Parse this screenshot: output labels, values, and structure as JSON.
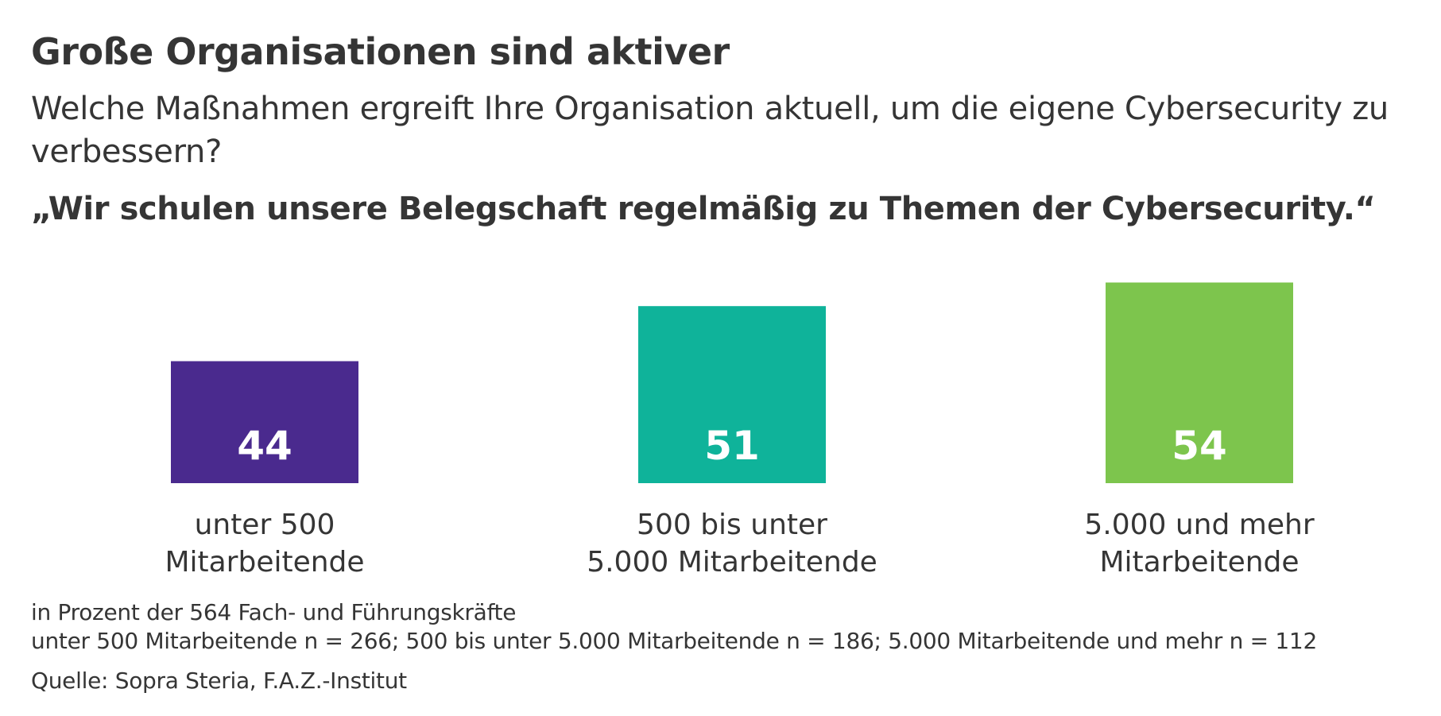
{
  "header": {
    "title": "Große Organisationen sind aktiver",
    "subtitle": "Welche Maßnahmen ergreift Ihre Organisation aktuell, um die eigene Cybersecurity zu verbessern?",
    "quote": "„Wir schulen unsere Belegschaft regelmäßig zu Themen der Cybersecurity.“"
  },
  "chart_data": {
    "type": "bar",
    "categories": [
      [
        "unter 500",
        "Mitarbeitende"
      ],
      [
        "500 bis unter",
        "5.000 Mitarbeitende"
      ],
      [
        "5.000 und mehr",
        "Mitarbeitende"
      ]
    ],
    "values": [
      44,
      51,
      54
    ],
    "colors": [
      "#4a2a8e",
      "#0fb39a",
      "#7dc54d"
    ],
    "data_labels": [
      "44",
      "51",
      "54"
    ],
    "grid": false,
    "legend": "none"
  },
  "footer": {
    "note_line1": "in Prozent der 564 Fach- und Führungskräfte",
    "note_line2": "unter 500 Mitarbeitende n = 266; 500 bis unter 5.000 Mitarbeitende n = 186; 5.000 Mitarbeitende und mehr n = 112",
    "source": "Quelle: Sopra Steria, F.A.Z.-Institut"
  }
}
